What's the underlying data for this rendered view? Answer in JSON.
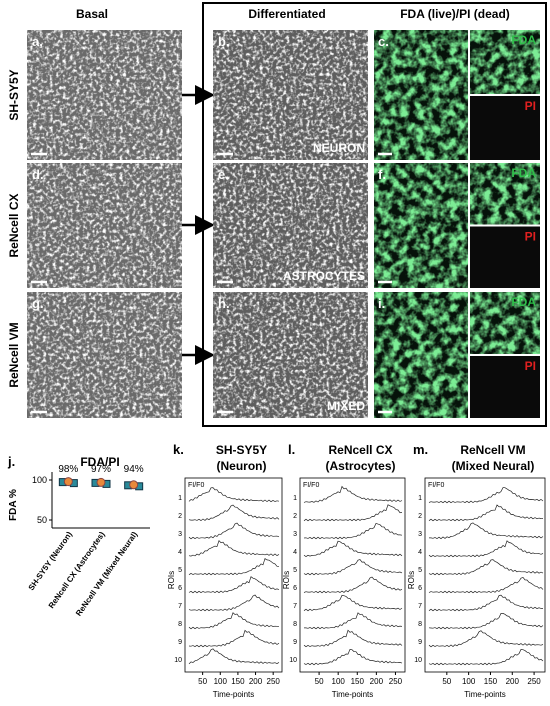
{
  "columns": [
    "Basal",
    "Differentiated",
    "FDA (live)/PI (dead)"
  ],
  "rows": [
    "SH-SY5Y",
    "ReNcell CX",
    "ReNcell VM"
  ],
  "panel_labels": [
    "a.",
    "b.",
    "c.",
    "d.",
    "e.",
    "f.",
    "g.",
    "h.",
    "i."
  ],
  "cell_types": [
    "NEURON",
    "ASTROCYTES",
    "MIXED"
  ],
  "insets": [
    "FDA",
    "PI"
  ],
  "chart_data": {
    "type": "scatter",
    "label": "j.",
    "title": "FDA/PI",
    "y_label": "FDA %",
    "categories": [
      "SH-SY5Y (Neuron)",
      "ReNcell CX (Astrocytes)",
      "ReNcell VM (Mixed Neural)"
    ],
    "values": [
      98,
      97,
      94
    ],
    "value_labels": [
      "98%",
      "97%",
      "94%"
    ],
    "color": "#e8893a",
    "ylim": [
      40,
      110
    ],
    "yticks": [
      50,
      100
    ]
  },
  "traces": {
    "panels": [
      {
        "label": "k.",
        "title": "SH-SY5Y",
        "subtitle": "(Neuron)"
      },
      {
        "label": "l.",
        "title": "ReNcell CX",
        "subtitle": "(Astrocytes)"
      },
      {
        "label": "m.",
        "title": "ReNcell VM",
        "subtitle": "(Mixed Neural)"
      }
    ],
    "corner_label": "FI/F0",
    "y_label": "ROIs",
    "x_label": "Time-points",
    "roi_labels": [
      "1",
      "2",
      "3",
      "4",
      "5",
      "6",
      "7",
      "8",
      "9",
      "10"
    ],
    "xlim": [
      0,
      275
    ],
    "xticks": [
      50,
      100,
      150,
      200,
      250
    ]
  }
}
